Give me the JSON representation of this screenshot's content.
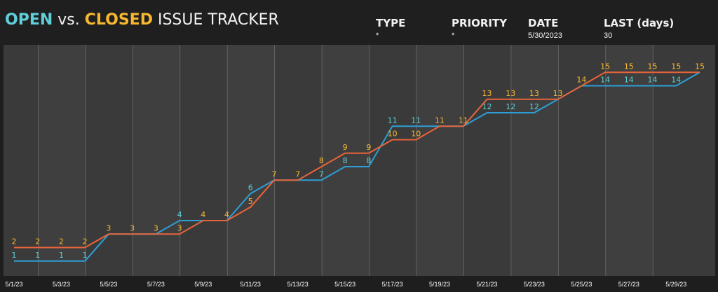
{
  "header": {
    "title_open": "OPEN",
    "title_vs": " vs. ",
    "title_closed": "CLOSED",
    "title_rest": " ISSUE TRACKER",
    "filters": [
      {
        "label": "TYPE",
        "value": "*"
      },
      {
        "label": "PRIORITY",
        "value": "*"
      },
      {
        "label": "DATE",
        "value": "5/30/2023"
      },
      {
        "label": "LAST (days)",
        "value": "30"
      }
    ]
  },
  "colors": {
    "open": "#2e9fd6",
    "open_label": "#5fcfd8",
    "closed": "#e8643a",
    "closed_label": "#f7b830",
    "background": "#1e1e1e",
    "plot_bg": "#3a3a3a",
    "band": "#444444"
  },
  "chart_data": {
    "type": "line",
    "categories": [
      "5/1/23",
      "5/2/23",
      "5/3/23",
      "5/4/23",
      "5/5/23",
      "5/6/23",
      "5/7/23",
      "5/8/23",
      "5/9/23",
      "5/10/23",
      "5/11/23",
      "5/12/23",
      "5/13/23",
      "5/14/23",
      "5/15/23",
      "5/16/23",
      "5/17/23",
      "5/18/23",
      "5/19/23",
      "5/20/23",
      "5/21/23",
      "5/22/23",
      "5/23/23",
      "5/24/23",
      "5/25/23",
      "5/26/23",
      "5/27/23",
      "5/28/23",
      "5/29/23",
      "5/30/23"
    ],
    "tick_labels": [
      "5/1/23",
      "5/3/23",
      "5/5/23",
      "5/7/23",
      "5/9/23",
      "5/11/23",
      "5/13/23",
      "5/15/23",
      "5/17/23",
      "5/19/23",
      "5/21/23",
      "5/23/23",
      "5/25/23",
      "5/27/23",
      "5/29/23"
    ],
    "series": [
      {
        "key": "open",
        "values": [
          1,
          1,
          1,
          1,
          3,
          3,
          3,
          4,
          4,
          4,
          6,
          7,
          7,
          7,
          8,
          8,
          11,
          11,
          11,
          11,
          12,
          12,
          12,
          13,
          14,
          14,
          14,
          14,
          14,
          15
        ]
      },
      {
        "key": "closed",
        "values": [
          2,
          2,
          2,
          2,
          3,
          3,
          3,
          3,
          4,
          4,
          5,
          7,
          7,
          8,
          9,
          9,
          10,
          10,
          11,
          11,
          13,
          13,
          13,
          13,
          14,
          15,
          15,
          15,
          15,
          15
        ]
      }
    ],
    "open_labels": [
      "1",
      "1",
      "1",
      "1",
      "",
      "",
      "",
      "4",
      "",
      "",
      "6",
      "",
      "",
      "7",
      "8",
      "8",
      "11",
      "11",
      "",
      "",
      "12",
      "12",
      "12",
      "",
      "",
      "14",
      "14",
      "14",
      "14",
      ""
    ],
    "closed_labels": [
      "2",
      "2",
      "2",
      "2",
      "3",
      "3",
      "3",
      "3",
      "4",
      "4",
      "5",
      "7",
      "7",
      "8",
      "9",
      "9",
      "10",
      "10",
      "11",
      "11",
      "13",
      "13",
      "13",
      "13",
      "14",
      "15",
      "15",
      "15",
      "15",
      "15"
    ],
    "ylim": [
      0,
      16
    ],
    "grid": "vertical",
    "legend": "none"
  }
}
